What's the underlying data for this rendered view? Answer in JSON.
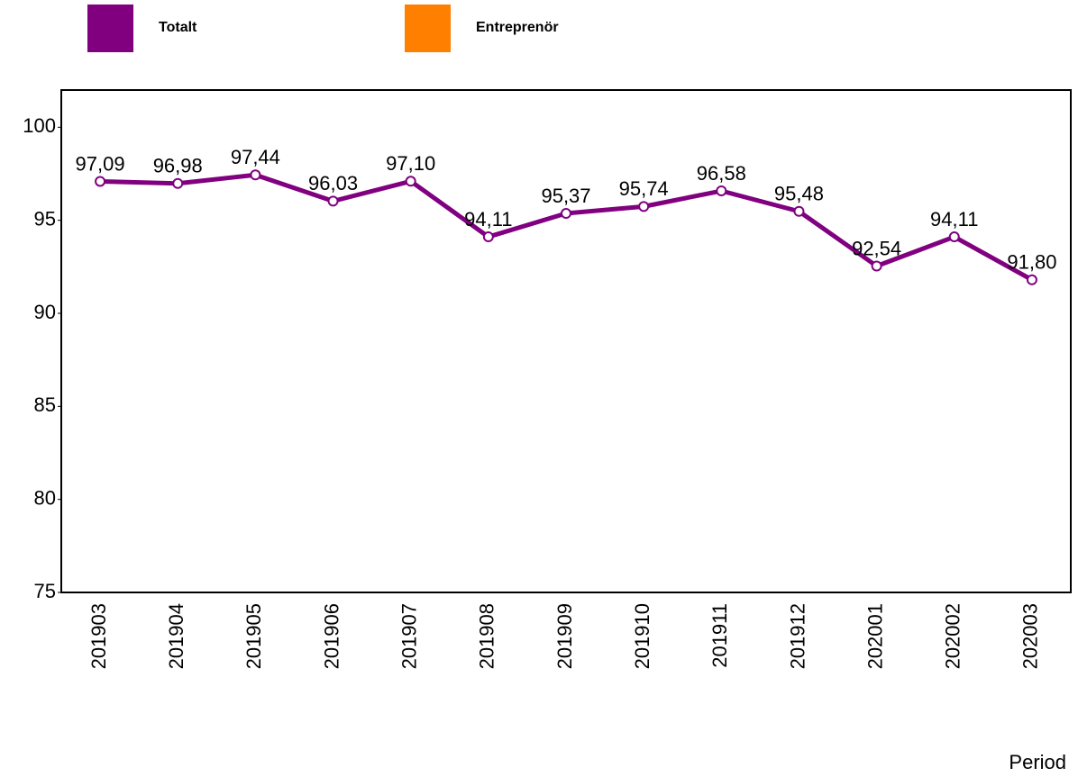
{
  "chart_data": {
    "type": "line",
    "x_label": "Period",
    "categories": [
      "201903",
      "201904",
      "201905",
      "201906",
      "201907",
      "201908",
      "201909",
      "201910",
      "201911",
      "201912",
      "202001",
      "202002",
      "202003"
    ],
    "series": [
      {
        "name": "Totalt",
        "color": "#800080",
        "values": [
          97.09,
          96.98,
          97.44,
          96.03,
          97.1,
          94.11,
          95.37,
          95.74,
          96.58,
          95.48,
          92.54,
          94.11,
          91.8
        ],
        "value_labels": [
          "97,09",
          "96,98",
          "97,44",
          "96,03",
          "97,10",
          "94,11",
          "95,37",
          "95,74",
          "96,58",
          "95,48",
          "92,54",
          "94,11",
          "91,80"
        ]
      },
      {
        "name": "Entreprenör",
        "color": "#ff8000",
        "values": [
          null,
          null,
          null,
          null,
          null,
          null,
          null,
          null,
          null,
          null,
          null,
          null,
          null
        ]
      }
    ],
    "ylim": [
      75,
      102
    ],
    "yticks": [
      75,
      80,
      85,
      90,
      95,
      100
    ],
    "grid": false
  }
}
